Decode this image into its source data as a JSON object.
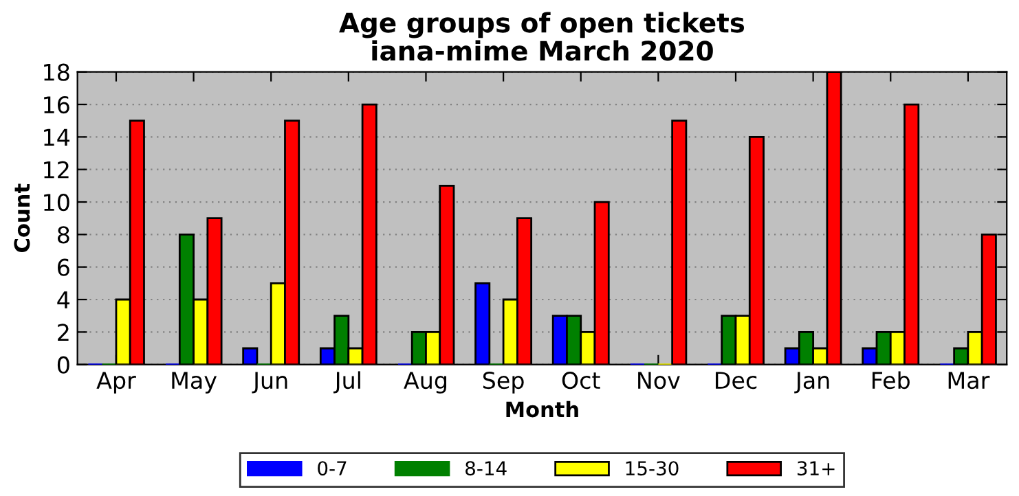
{
  "chart_data": {
    "type": "bar",
    "title": "Age groups of open tickets\niana-mime March 2020",
    "xlabel": "Month",
    "ylabel": "Count",
    "categories": [
      "Apr",
      "May",
      "Jun",
      "Jul",
      "Aug",
      "Sep",
      "Oct",
      "Nov",
      "Dec",
      "Jan",
      "Feb",
      "Mar"
    ],
    "series": [
      {
        "name": "0-7",
        "color": "#0000ff",
        "values": [
          0,
          0,
          1,
          1,
          0,
          5,
          3,
          0,
          0,
          1,
          1,
          0
        ]
      },
      {
        "name": "8-14",
        "color": "#008000",
        "values": [
          0,
          8,
          0,
          3,
          2,
          0,
          3,
          0,
          3,
          2,
          2,
          1
        ]
      },
      {
        "name": "15-30",
        "color": "#ffff00",
        "values": [
          4,
          4,
          5,
          1,
          2,
          4,
          2,
          0,
          3,
          1,
          2,
          2
        ]
      },
      {
        "name": "31+",
        "color": "#ff0000",
        "values": [
          15,
          9,
          15,
          16,
          11,
          9,
          10,
          15,
          14,
          18,
          16,
          8
        ]
      }
    ],
    "ylim": [
      0,
      18
    ],
    "yticks": [
      0,
      2,
      4,
      6,
      8,
      10,
      12,
      14,
      16,
      18
    ],
    "grid": "y",
    "legend": "bottom"
  }
}
